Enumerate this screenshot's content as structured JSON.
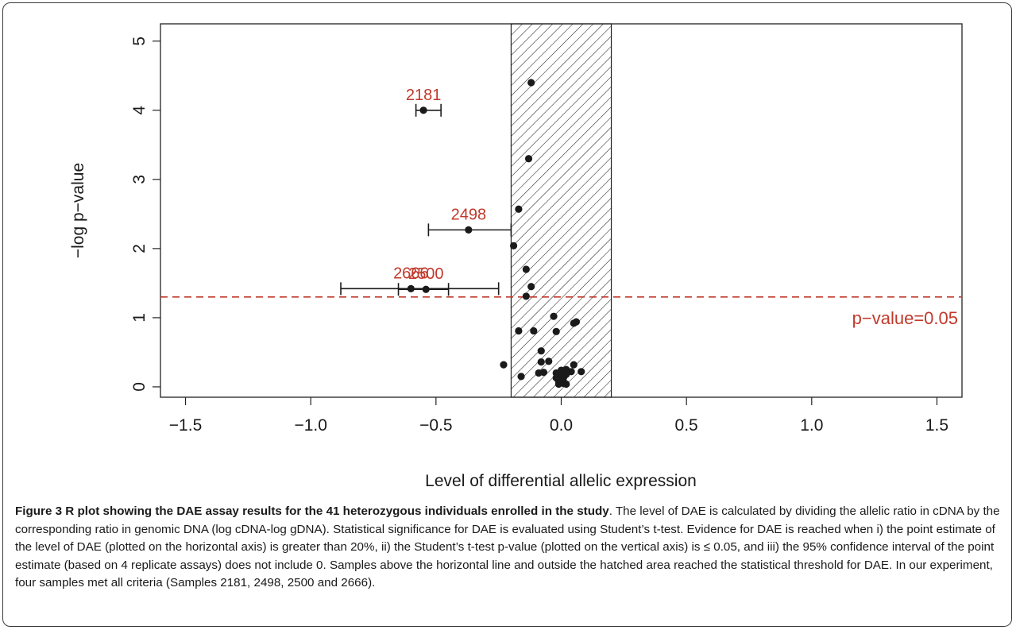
{
  "chart_data": {
    "type": "scatter",
    "xlabel": "Level of differential allelic expression",
    "ylabel": "−log p−value",
    "xlim": [
      -1.6,
      1.6
    ],
    "ylim": [
      -0.15,
      5.25
    ],
    "x_ticks": [
      -1.5,
      -1.0,
      -0.5,
      0.0,
      0.5,
      1.0,
      1.5
    ],
    "x_tick_labels": [
      "−1.5",
      "−1.0",
      "−0.5",
      "0.0",
      "0.5",
      "1.0",
      "1.5"
    ],
    "y_ticks": [
      0,
      1,
      2,
      3,
      4,
      5
    ],
    "y_tick_labels": [
      "0",
      "1",
      "2",
      "3",
      "4",
      "5"
    ],
    "hatched_region": [
      -0.2,
      0.2
    ],
    "threshold": {
      "y": 1.3,
      "label": "p−value=0.05",
      "color": "#c0392b"
    },
    "label_color": "#c0392b",
    "point_color": "#1a1a1a",
    "highlighted": [
      {
        "label": "2181",
        "x": -0.55,
        "y": 4.0,
        "ci": [
          -0.58,
          -0.48
        ]
      },
      {
        "label": "2498",
        "x": -0.37,
        "y": 2.27,
        "ci": [
          -0.53,
          -0.2
        ]
      },
      {
        "label": "2666",
        "x": -0.6,
        "y": 1.42,
        "ci": [
          -0.88,
          -0.25
        ]
      },
      {
        "label": "2500",
        "x": -0.54,
        "y": 1.41,
        "ci": [
          -0.65,
          -0.45
        ]
      }
    ],
    "points": [
      [
        -0.12,
        4.4
      ],
      [
        -0.13,
        3.3
      ],
      [
        -0.17,
        2.57
      ],
      [
        -0.19,
        2.04
      ],
      [
        -0.14,
        1.7
      ],
      [
        -0.12,
        1.45
      ],
      [
        -0.14,
        1.31
      ],
      [
        -0.03,
        1.02
      ],
      [
        0.05,
        0.92
      ],
      [
        0.06,
        0.94
      ],
      [
        -0.17,
        0.81
      ],
      [
        -0.11,
        0.81
      ],
      [
        -0.02,
        0.8
      ],
      [
        -0.08,
        0.52
      ],
      [
        -0.08,
        0.36
      ],
      [
        -0.05,
        0.37
      ],
      [
        -0.23,
        0.32
      ],
      [
        -0.16,
        0.15
      ],
      [
        0.05,
        0.32
      ],
      [
        -0.09,
        0.2
      ],
      [
        -0.07,
        0.21
      ],
      [
        -0.02,
        0.2
      ],
      [
        0.0,
        0.24
      ],
      [
        0.02,
        0.25
      ],
      [
        0.04,
        0.22
      ],
      [
        0.08,
        0.22
      ],
      [
        0.0,
        0.16
      ],
      [
        -0.01,
        0.12
      ],
      [
        0.01,
        0.14
      ],
      [
        -0.01,
        0.08
      ],
      [
        0.01,
        0.07
      ],
      [
        -0.01,
        0.04
      ],
      [
        0.01,
        0.05
      ],
      [
        0.02,
        0.04
      ],
      [
        0.0,
        0.1
      ],
      [
        0.02,
        0.18
      ],
      [
        -0.02,
        0.13
      ]
    ]
  },
  "caption": {
    "bold": "Figure 3 R plot showing the DAE assay results for the 41 heterozygous individuals enrolled in the study",
    "text": ". The level of DAE is calculated by dividing the allelic ratio in cDNA by the corresponding ratio in genomic DNA (log cDNA-log gDNA). Statistical significance for DAE is evaluated using Student’s t-test. Evidence for DAE is reached when i) the point estimate of the level of DAE (plotted on the horizontal axis) is greater than 20%, ii) the Student’s t-test p-value (plotted on the vertical axis) is ≤ 0.05, and iii) the 95% confidence interval of the point estimate (based on 4 replicate assays) does not include 0. Samples above the horizontal line and outside the hatched area reached the statistical threshold for DAE. In our experiment, four samples met all criteria (Samples 2181, 2498, 2500 and 2666)."
  }
}
